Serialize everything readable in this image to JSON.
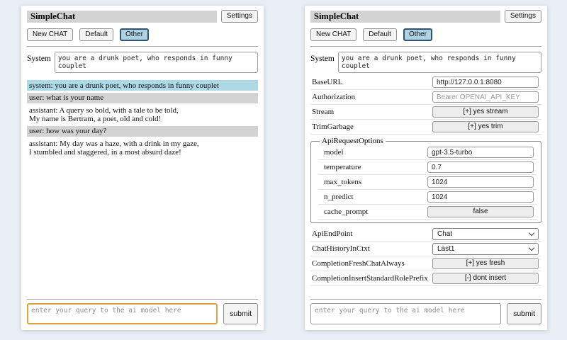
{
  "app": {
    "title": "SimpleChat",
    "settings_label": "Settings",
    "toolbar": {
      "new_chat": "New CHAT",
      "default": "Default",
      "other": "Other",
      "selected": "Other"
    },
    "system_label": "System",
    "system_value": "you are a drunk poet, who responds in funny couplet",
    "input_placeholder": "enter your query to the ai model here",
    "submit_label": "submit"
  },
  "chat": {
    "messages": [
      {
        "role": "system",
        "text": "system: you are a drunk poet, who responds in funny couplet"
      },
      {
        "role": "user",
        "text": "user: what is your name"
      },
      {
        "role": "assistant",
        "text": "assistant: A query so bold, with a tale to be told,\nMy name is Bertram, a poet, old and cold!"
      },
      {
        "role": "user",
        "text": "user: how was your day?"
      },
      {
        "role": "assistant",
        "text": "assistant: My day was a haze, with a drink in my gaze,\nI stumbled and staggered, in a most absurd daze!"
      }
    ]
  },
  "settings": {
    "top": [
      {
        "label": "BaseURL",
        "type": "text",
        "value": "http://127.0.0.1:8080"
      },
      {
        "label": "Authorization",
        "type": "text",
        "value": "",
        "placeholder": "Bearer OPENAI_API_KEY"
      },
      {
        "label": "Stream",
        "type": "button",
        "value": "[+] yes stream"
      },
      {
        "label": "TrimGarbage",
        "type": "button",
        "value": "[+] yes trim"
      }
    ],
    "group": {
      "legend": "ApiRequestOptions",
      "rows": [
        {
          "label": "model",
          "type": "text",
          "value": "gpt-3.5-turbo"
        },
        {
          "label": "temperature",
          "type": "text",
          "value": "0.7"
        },
        {
          "label": "max_tokens",
          "type": "text",
          "value": "1024"
        },
        {
          "label": "n_predict",
          "type": "text",
          "value": "1024"
        },
        {
          "label": "cache_prompt",
          "type": "button",
          "value": "false"
        }
      ]
    },
    "bottom": [
      {
        "label": "ApiEndPoint",
        "type": "select",
        "value": "Chat"
      },
      {
        "label": "ChatHistoryInCtxt",
        "type": "select",
        "value": "Last1"
      },
      {
        "label": "CompletionFreshChatAlways",
        "type": "button",
        "value": "[+] yes fresh"
      },
      {
        "label": "CompletionInsertStandardRolePrefix",
        "type": "button",
        "value": "[-] dont insert"
      }
    ]
  },
  "colors": {
    "page_background": "#e9edf4",
    "panel_background": "#ffffff",
    "titlebar_background": "#d3d3d3",
    "system_message_background": "#add8e6",
    "user_message_background": "#d3d3d3",
    "selected_button_background": "#aed2e3",
    "selected_button_border": "#33536e",
    "focused_input_border": "#dba343"
  }
}
